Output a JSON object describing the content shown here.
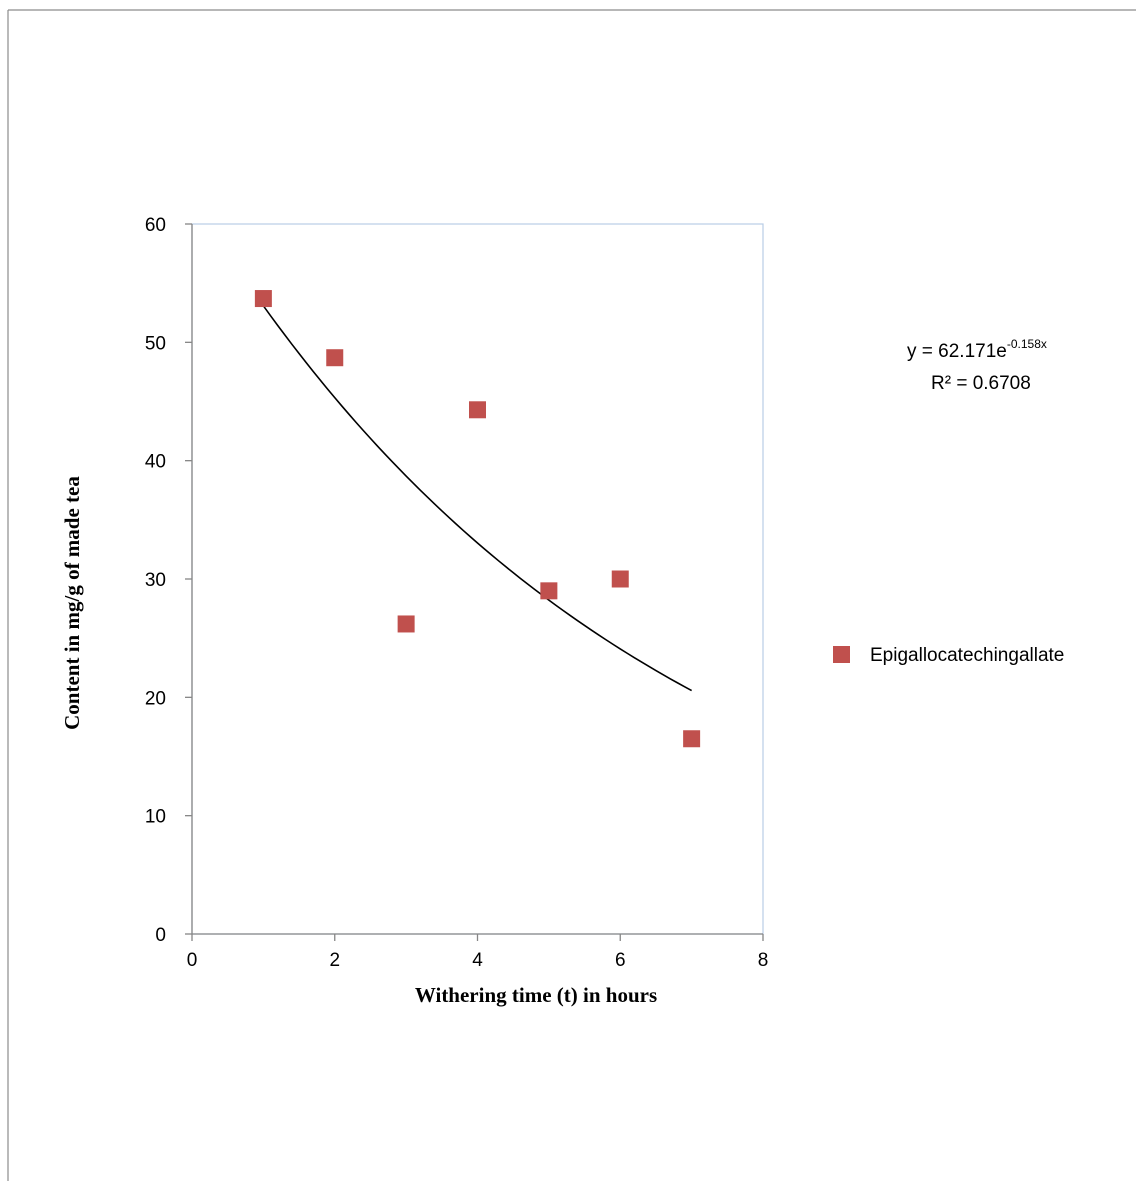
{
  "chart_data": {
    "type": "scatter",
    "xlabel": "Withering time (t) in hours",
    "ylabel": "Content in mg/g of made tea",
    "xlim": [
      0,
      8
    ],
    "ylim": [
      0,
      60
    ],
    "xticks": [
      "0",
      "2",
      "4",
      "6",
      "8"
    ],
    "yticks": [
      "0",
      "10",
      "20",
      "30",
      "40",
      "50",
      "60"
    ],
    "grid": false,
    "legend_position": "right",
    "series": [
      {
        "name": "Epigallocatechingallate",
        "color": "#c0504d",
        "marker": "square",
        "x": [
          1,
          2,
          3,
          4,
          5,
          6,
          7
        ],
        "y": [
          53.7,
          48.7,
          26.2,
          44.3,
          29.0,
          30.0,
          16.5
        ]
      }
    ],
    "trendline": {
      "type": "exponential",
      "a": 62.171,
      "b": -0.158,
      "x_range": [
        1,
        7
      ],
      "color": "#000000",
      "equation_base": "y = 62.171e",
      "equation_exponent": "-0.158x",
      "r_squared_label": "R² = 0.6708"
    }
  }
}
